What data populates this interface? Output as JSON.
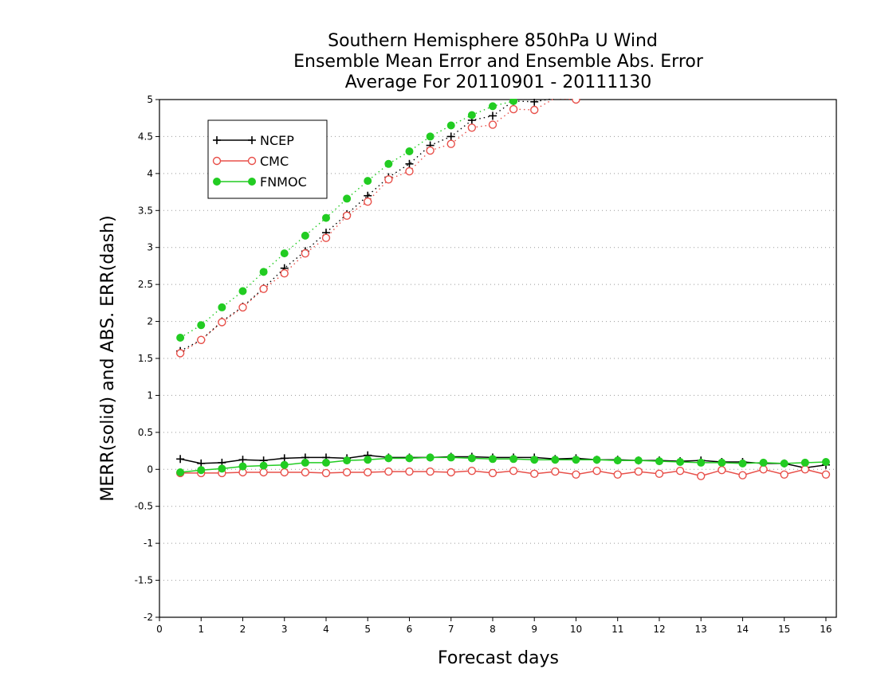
{
  "chart_data": {
    "type": "line",
    "title": [
      "Southern Hemisphere 850hPa U Wind",
      "Ensemble Mean Error and Ensemble Abs. Error",
      "Average For 20110901 - 20111130"
    ],
    "xlabel": "Forecast days",
    "ylabel": "MERR(solid) and ABS. ERR(dash)",
    "xlim": [
      0,
      16.25
    ],
    "ylim": [
      -2,
      5
    ],
    "xticks": [
      0,
      1,
      2,
      3,
      4,
      5,
      6,
      7,
      8,
      9,
      10,
      11,
      12,
      13,
      14,
      15,
      16
    ],
    "yticks": [
      -2,
      -1.5,
      -1,
      -0.5,
      0,
      0.5,
      1,
      1.5,
      2,
      2.5,
      3,
      3.5,
      4,
      4.5,
      5
    ],
    "ytick_labels": [
      "-2",
      "-1.5",
      "-1",
      "-0.5",
      "0",
      "0.5",
      "1",
      "1.5",
      "2",
      "2.5",
      "3",
      "3.5",
      "4",
      "4.5",
      "5"
    ],
    "grid": "horizontal dotted",
    "legend_position": "top-left",
    "x": [
      0.5,
      1,
      1.5,
      2,
      2.5,
      3,
      3.5,
      4,
      4.5,
      5,
      5.5,
      6,
      6.5,
      7,
      7.5,
      8,
      8.5,
      9,
      9.5,
      10,
      10.5,
      11,
      11.5,
      12,
      12.5,
      13,
      13.5,
      14,
      14.5,
      15,
      15.5,
      16
    ],
    "series": [
      {
        "name": "NCEP",
        "color": "#000000",
        "marker": "plus",
        "mean_error": [
          0.14,
          0.08,
          0.09,
          0.13,
          0.12,
          0.15,
          0.16,
          0.16,
          0.15,
          0.19,
          0.16,
          0.16,
          0.16,
          0.17,
          0.17,
          0.16,
          0.16,
          0.16,
          0.14,
          0.15,
          0.13,
          0.13,
          0.12,
          0.12,
          0.11,
          0.12,
          0.1,
          0.1,
          0.08,
          0.08,
          0.02,
          0.06
        ],
        "abs_error": [
          1.6,
          1.75,
          2.0,
          2.2,
          2.45,
          2.72,
          2.95,
          3.2,
          3.45,
          3.7,
          3.95,
          4.13,
          4.38,
          4.5,
          4.72,
          4.78,
          4.98,
          4.97,
          5.02,
          5.02,
          null,
          null,
          null,
          null,
          null,
          null,
          null,
          null,
          null,
          null,
          null,
          null
        ]
      },
      {
        "name": "CMC",
        "color": "#e8504a",
        "marker": "open-circle",
        "mean_error": [
          -0.05,
          -0.05,
          -0.05,
          -0.04,
          -0.04,
          -0.04,
          -0.04,
          -0.05,
          -0.04,
          -0.04,
          -0.03,
          -0.03,
          -0.03,
          -0.04,
          -0.02,
          -0.05,
          -0.02,
          -0.06,
          -0.03,
          -0.07,
          -0.02,
          -0.07,
          -0.03,
          -0.06,
          -0.02,
          -0.09,
          -0.01,
          -0.08,
          0.0,
          -0.07,
          0.0,
          -0.07
        ],
        "abs_error": [
          1.57,
          1.75,
          1.99,
          2.19,
          2.44,
          2.65,
          2.92,
          3.13,
          3.43,
          3.62,
          3.92,
          4.03,
          4.31,
          4.4,
          4.62,
          4.66,
          4.87,
          4.86,
          5.02,
          5.0,
          null,
          null,
          null,
          null,
          null,
          null,
          null,
          null,
          null,
          null,
          null,
          null
        ]
      },
      {
        "name": "FNMOC",
        "color": "#22cc22",
        "marker": "filled-circle",
        "mean_error": [
          -0.04,
          -0.01,
          0.01,
          0.04,
          0.05,
          0.06,
          0.09,
          0.09,
          0.12,
          0.13,
          0.15,
          0.15,
          0.16,
          0.16,
          0.15,
          0.14,
          0.14,
          0.13,
          0.13,
          0.13,
          0.13,
          0.12,
          0.12,
          0.11,
          0.1,
          0.09,
          0.09,
          0.08,
          0.09,
          0.08,
          0.09,
          0.1
        ],
        "abs_error": [
          1.78,
          1.95,
          2.19,
          2.41,
          2.67,
          2.92,
          3.16,
          3.4,
          3.66,
          3.9,
          4.13,
          4.3,
          4.5,
          4.65,
          4.79,
          4.91,
          4.98,
          null,
          null,
          null,
          null,
          null,
          null,
          null,
          null,
          null,
          null,
          null,
          null,
          null,
          null,
          null
        ]
      }
    ]
  }
}
